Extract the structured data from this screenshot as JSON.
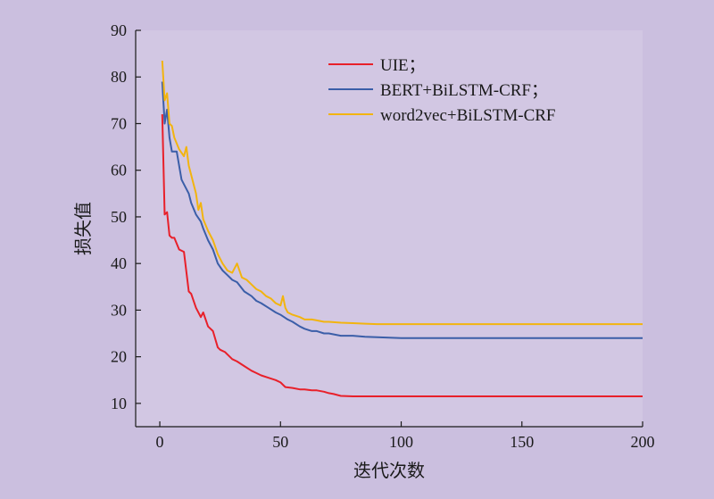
{
  "chart_data": {
    "type": "line",
    "title": "",
    "xlabel": "迭代次数",
    "ylabel": "损失值",
    "xlim": [
      -10,
      200
    ],
    "ylim": [
      5,
      90
    ],
    "xticks": [
      0,
      50,
      100,
      150,
      200
    ],
    "yticks": [
      10,
      20,
      30,
      40,
      50,
      60,
      70,
      80,
      90
    ],
    "grid": false,
    "legend_position": "top-right",
    "background_color": "#cbbfdf",
    "series": [
      {
        "name": "UIE；",
        "color": "#e8202a",
        "x": [
          1,
          2,
          3,
          4,
          5,
          6,
          8,
          10,
          12,
          13,
          15,
          17,
          18,
          20,
          22,
          24,
          25,
          27,
          30,
          32,
          35,
          38,
          40,
          42,
          45,
          48,
          50,
          52,
          55,
          58,
          60,
          63,
          65,
          68,
          70,
          72,
          75,
          80,
          85,
          90,
          100,
          150,
          200
        ],
        "y": [
          72,
          50.5,
          51,
          46,
          45.5,
          45.5,
          43,
          42.5,
          34,
          33.5,
          30.5,
          28.5,
          29.5,
          26.5,
          25.5,
          22,
          21.5,
          21,
          19.5,
          19,
          18,
          17,
          16.5,
          16,
          15.5,
          15,
          14.5,
          13.5,
          13.3,
          13,
          13,
          12.8,
          12.8,
          12.5,
          12.2,
          12,
          11.6,
          11.5,
          11.5,
          11.5,
          11.5,
          11.5,
          11.5
        ]
      },
      {
        "name": "BERT+BiLSTM-CRF；",
        "color": "#3b5ea8",
        "x": [
          1,
          2,
          3,
          4,
          5,
          7,
          9,
          10,
          12,
          13,
          15,
          17,
          18,
          20,
          22,
          24,
          26,
          28,
          30,
          32,
          35,
          38,
          40,
          42,
          45,
          48,
          50,
          53,
          55,
          58,
          60,
          63,
          65,
          68,
          70,
          75,
          80,
          85,
          90,
          95,
          100,
          110,
          150,
          200
        ],
        "y": [
          79,
          70,
          73,
          67,
          64,
          64,
          58,
          57,
          55,
          53,
          50.5,
          49,
          47.5,
          45,
          43,
          40,
          38.5,
          37.5,
          36.5,
          36,
          34,
          33,
          32,
          31.5,
          30.5,
          29.5,
          29,
          28,
          27.5,
          26.5,
          26,
          25.5,
          25.5,
          25,
          25,
          24.5,
          24.5,
          24.3,
          24.2,
          24.1,
          24,
          24,
          24,
          24
        ]
      },
      {
        "name": "word2vec+BiLSTM-CRF",
        "color": "#f2b40f",
        "x": [
          1,
          2,
          3,
          4,
          5,
          6,
          8,
          10,
          11,
          12,
          14,
          15,
          16,
          17,
          18,
          20,
          22,
          24,
          26,
          28,
          30,
          32,
          34,
          36,
          38,
          40,
          42,
          44,
          46,
          48,
          50,
          51,
          52,
          53,
          55,
          58,
          60,
          63,
          65,
          68,
          70,
          75,
          80,
          85,
          90,
          100,
          150,
          200
        ],
        "y": [
          83.5,
          75,
          76.5,
          70,
          69.5,
          67,
          64.5,
          63,
          65,
          61,
          57,
          55,
          51.5,
          53,
          49.5,
          47,
          45,
          42,
          40,
          38.5,
          38,
          40,
          37,
          36.5,
          35.5,
          34.5,
          34,
          33,
          32.5,
          31.5,
          31,
          33,
          30.5,
          29.5,
          29,
          28.5,
          28,
          28,
          27.8,
          27.5,
          27.5,
          27.3,
          27.2,
          27.1,
          27,
          27,
          27,
          27
        ]
      }
    ]
  }
}
